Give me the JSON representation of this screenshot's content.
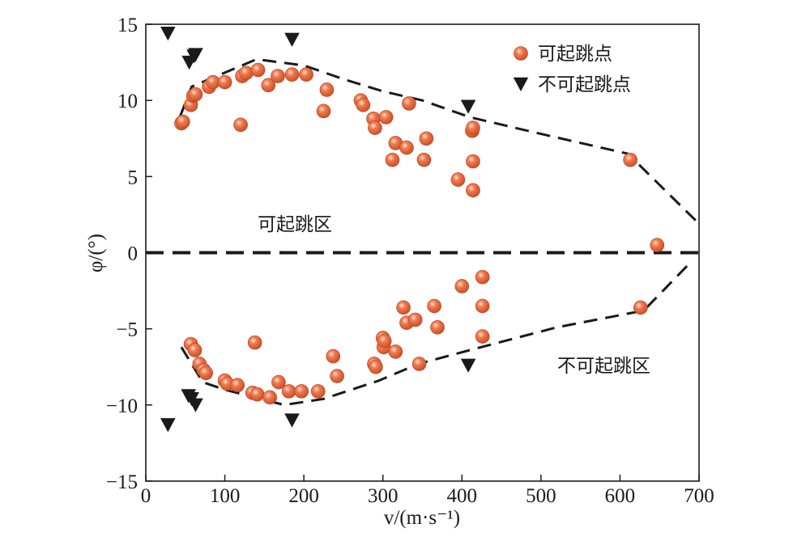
{
  "chart_data": {
    "type": "scatter",
    "xlabel": "v/(m·s⁻¹)",
    "ylabel": "φ/(°)",
    "xlim": [
      0,
      700
    ],
    "ylim": [
      -15,
      15
    ],
    "x_ticks": [
      0,
      100,
      200,
      300,
      400,
      500,
      600,
      700
    ],
    "y_ticks": [
      -15,
      -10,
      -5,
      0,
      5,
      10,
      15
    ],
    "x_tick_labels": [
      "0",
      "100",
      "200",
      "300",
      "400",
      "500",
      "600",
      "700"
    ],
    "y_tick_labels": [
      "−15",
      "−10",
      "−5",
      "0",
      "5",
      "10",
      "15"
    ],
    "grid": false,
    "legend_position": "top-right",
    "region_labels": [
      "可起跳区",
      "不可起跳区"
    ],
    "series": [
      {
        "name": "可起跳点",
        "marker": "sphere",
        "color": "#e8603a",
        "points": [
          [
            45,
            8.5
          ],
          [
            47,
            8.6
          ],
          [
            57,
            9.7
          ],
          [
            60,
            10.3
          ],
          [
            63,
            10.4
          ],
          [
            80,
            10.9
          ],
          [
            85,
            11.2
          ],
          [
            100,
            11.2
          ],
          [
            120,
            8.4
          ],
          [
            122,
            11.6
          ],
          [
            127,
            11.8
          ],
          [
            142,
            12.0
          ],
          [
            155,
            11.0
          ],
          [
            167,
            11.6
          ],
          [
            185,
            11.7
          ],
          [
            203,
            11.7
          ],
          [
            225,
            9.3
          ],
          [
            229,
            10.7
          ],
          [
            272,
            10.0
          ],
          [
            275,
            9.7
          ],
          [
            288,
            8.8
          ],
          [
            290,
            8.2
          ],
          [
            304,
            8.9
          ],
          [
            312,
            6.1
          ],
          [
            316,
            7.2
          ],
          [
            330,
            6.9
          ],
          [
            333,
            9.8
          ],
          [
            352,
            6.1
          ],
          [
            355,
            7.5
          ],
          [
            395,
            4.8
          ],
          [
            413,
            8.0
          ],
          [
            414,
            8.2
          ],
          [
            414,
            6.0
          ],
          [
            414,
            4.1
          ],
          [
            613,
            6.1
          ],
          [
            647,
            0.5
          ],
          [
            57,
            -6.0
          ],
          [
            62,
            -6.4
          ],
          [
            68,
            -7.3
          ],
          [
            73,
            -7.7
          ],
          [
            76,
            -7.9
          ],
          [
            100,
            -8.4
          ],
          [
            103,
            -8.6
          ],
          [
            116,
            -8.7
          ],
          [
            135,
            -9.2
          ],
          [
            138,
            -5.9
          ],
          [
            141,
            -9.3
          ],
          [
            157,
            -9.5
          ],
          [
            168,
            -8.5
          ],
          [
            181,
            -9.1
          ],
          [
            197,
            -9.1
          ],
          [
            218,
            -9.1
          ],
          [
            237,
            -6.8
          ],
          [
            242,
            -8.1
          ],
          [
            289,
            -7.3
          ],
          [
            291,
            -7.5
          ],
          [
            300,
            -5.6
          ],
          [
            301,
            -6.2
          ],
          [
            302,
            -5.8
          ],
          [
            316,
            -6.5
          ],
          [
            326,
            -3.6
          ],
          [
            330,
            -4.6
          ],
          [
            341,
            -4.4
          ],
          [
            346,
            -7.3
          ],
          [
            365,
            -3.5
          ],
          [
            369,
            -4.9
          ],
          [
            400,
            -2.2
          ],
          [
            426,
            -1.6
          ],
          [
            426,
            -3.5
          ],
          [
            426,
            -5.5
          ],
          [
            626,
            -3.6
          ]
        ]
      },
      {
        "name": "不可起跳点",
        "marker": "triangle-down",
        "color": "#1a1a1a",
        "points": [
          [
            28,
            14.4
          ],
          [
            55,
            12.5
          ],
          [
            61,
            12.9
          ],
          [
            63,
            13.0
          ],
          [
            185,
            14.0
          ],
          [
            408,
            9.6
          ],
          [
            28,
            -11.3
          ],
          [
            54,
            -9.4
          ],
          [
            58,
            -9.6
          ],
          [
            63,
            -10.0
          ],
          [
            185,
            -11.0
          ],
          [
            408,
            -7.4
          ]
        ]
      },
      {
        "name": "",
        "type": "line",
        "style": "dashed",
        "color": "#1a1a1a",
        "points": [
          [
            43,
            8.9
          ],
          [
            58,
            10.9
          ],
          [
            90,
            11.6
          ],
          [
            140,
            12.7
          ],
          [
            200,
            12.3
          ],
          [
            250,
            11.4
          ],
          [
            300,
            10.6
          ],
          [
            350,
            10.0
          ],
          [
            410,
            8.9
          ],
          [
            500,
            7.8
          ],
          [
            610,
            6.5
          ],
          [
            700,
            1.9
          ]
        ]
      },
      {
        "name": "",
        "type": "line",
        "style": "dashed",
        "color": "#1a1a1a",
        "points": [
          [
            45,
            -6.2
          ],
          [
            72,
            -8.5
          ],
          [
            100,
            -9.0
          ],
          [
            175,
            -10.0
          ],
          [
            225,
            -9.6
          ],
          [
            295,
            -8.4
          ],
          [
            345,
            -7.3
          ],
          [
            410,
            -6.4
          ],
          [
            520,
            -4.9
          ],
          [
            630,
            -3.8
          ],
          [
            690,
            -0.6
          ]
        ]
      },
      {
        "name": "",
        "type": "line",
        "style": "dashed-bold",
        "color": "#1a1a1a",
        "points": [
          [
            0,
            0
          ],
          [
            700,
            0
          ]
        ]
      }
    ]
  }
}
